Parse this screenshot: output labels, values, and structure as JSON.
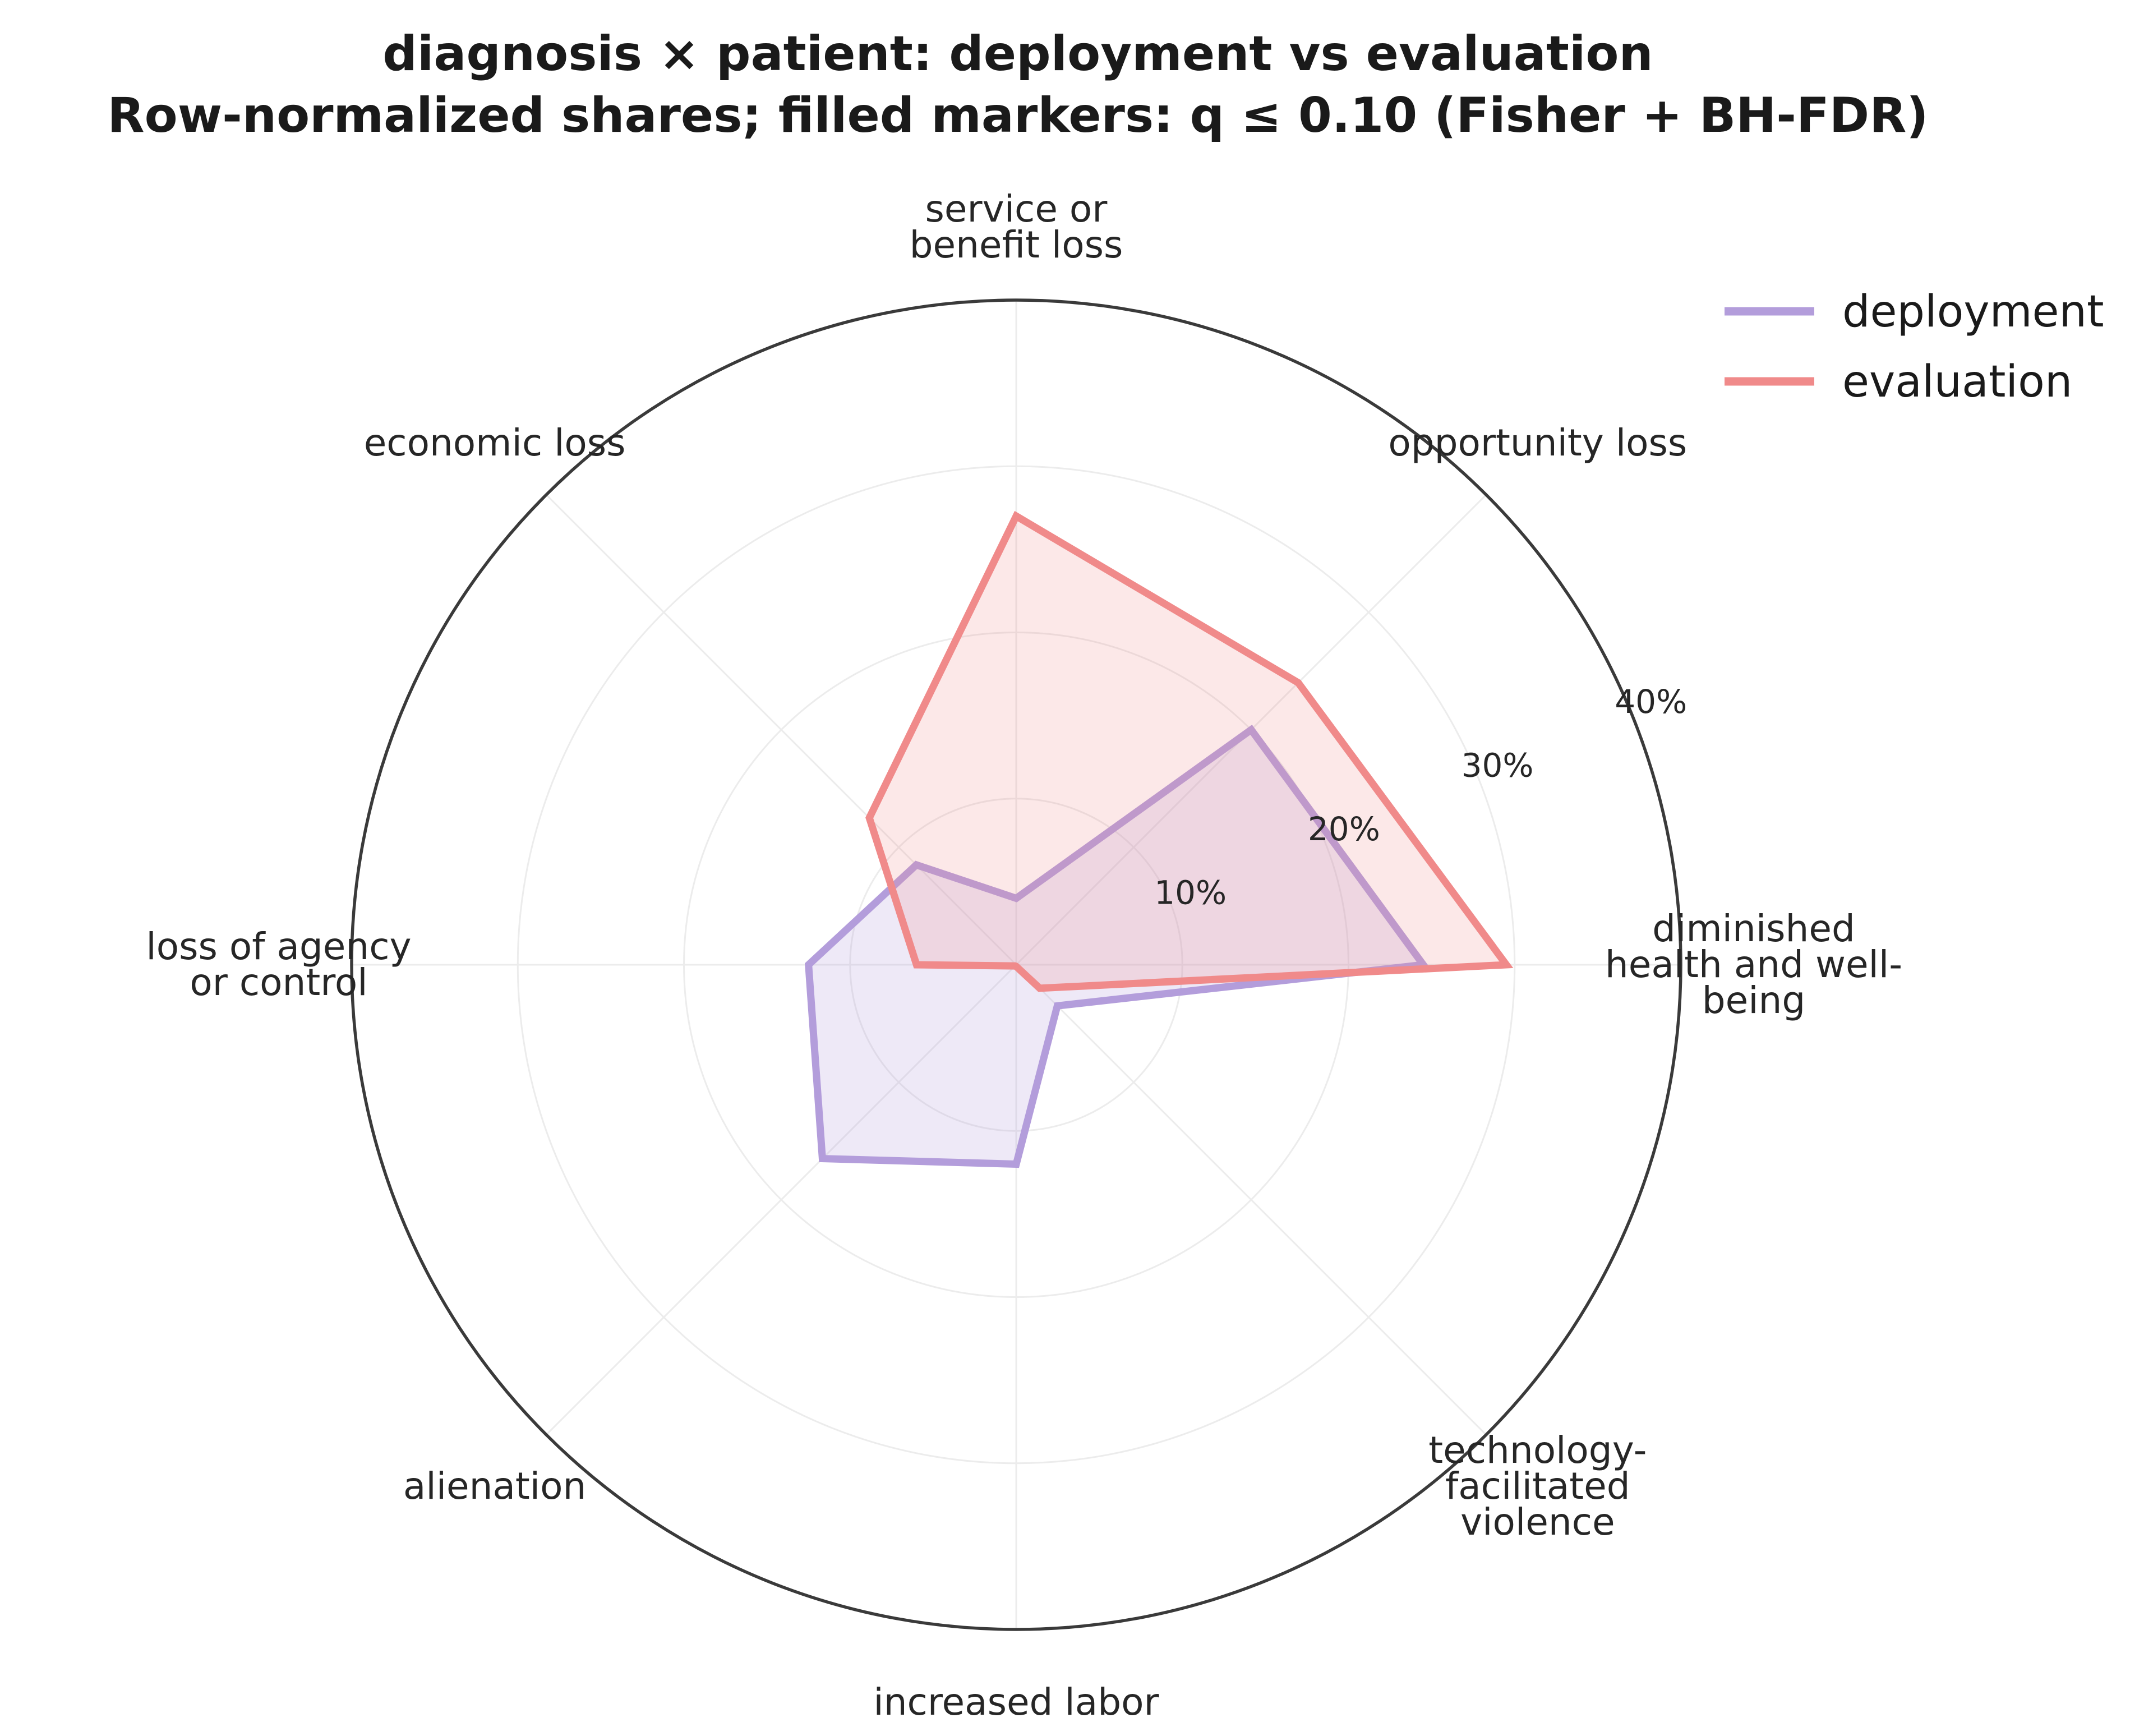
{
  "chart_data": {
    "type": "radar",
    "title_lines": [
      "diagnosis × patient: deployment vs evaluation",
      "Row-normalized shares; filled markers: q ≤ 0.10 (Fisher + BH-FDR)"
    ],
    "categories": [
      [
        "diminished",
        "health and well-",
        "being"
      ],
      [
        "opportunity loss"
      ],
      [
        "service or",
        "benefit loss"
      ],
      [
        "economic loss"
      ],
      [
        "loss of agency",
        "or control"
      ],
      [
        "alienation"
      ],
      [
        "increased labor"
      ],
      [
        "technology-",
        "facilitated",
        "violence"
      ]
    ],
    "rlim": [
      0,
      40
    ],
    "r_ticks": [
      10,
      20,
      30,
      40
    ],
    "r_tick_labels": [
      "10%",
      "20%",
      "30%",
      "40%"
    ],
    "grid": true,
    "legend_position": "top-right",
    "series": [
      {
        "name": "deployment",
        "color": "#b39ddb",
        "fill_opacity": 0.22,
        "values": [
          24.5,
          20.0,
          4.0,
          8.5,
          12.5,
          16.5,
          12.0,
          3.5
        ]
      },
      {
        "name": "evaluation",
        "color": "#f08a8a",
        "fill_opacity": 0.2,
        "values": [
          29.5,
          24.0,
          27.0,
          12.5,
          6.0,
          0.1,
          0.1,
          2.0
        ]
      }
    ]
  }
}
